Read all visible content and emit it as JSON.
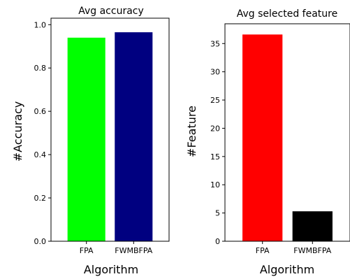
{
  "chart_data": [
    {
      "type": "bar",
      "title": "Avg accuracy",
      "xlabel": "Algorithm",
      "ylabel": "#Accuracy",
      "categories": [
        "FPA",
        "FWMBFPA"
      ],
      "values": [
        0.94,
        0.965
      ],
      "colors": [
        "#00ff00",
        "#000080"
      ],
      "ylim": [
        0,
        1.03
      ],
      "yticks": [
        0.0,
        0.2,
        0.4,
        0.6,
        0.8,
        1.0
      ],
      "ytick_labels": [
        "0.0",
        "0.2",
        "0.4",
        "0.6",
        "0.8",
        "1.0"
      ],
      "grid": false
    },
    {
      "type": "bar",
      "title": "Avg selected feature",
      "xlabel": "Algorithm",
      "ylabel": "#Feature",
      "categories": [
        "FPA",
        "FWMBFPA"
      ],
      "values": [
        36.6,
        5.3
      ],
      "colors": [
        "#ff0000",
        "#000000"
      ],
      "ylim": [
        0,
        38.5
      ],
      "yticks": [
        0,
        5,
        10,
        15,
        20,
        25,
        30,
        35
      ],
      "ytick_labels": [
        "0",
        "5",
        "10",
        "15",
        "20",
        "25",
        "30",
        "35"
      ],
      "grid": false
    }
  ]
}
